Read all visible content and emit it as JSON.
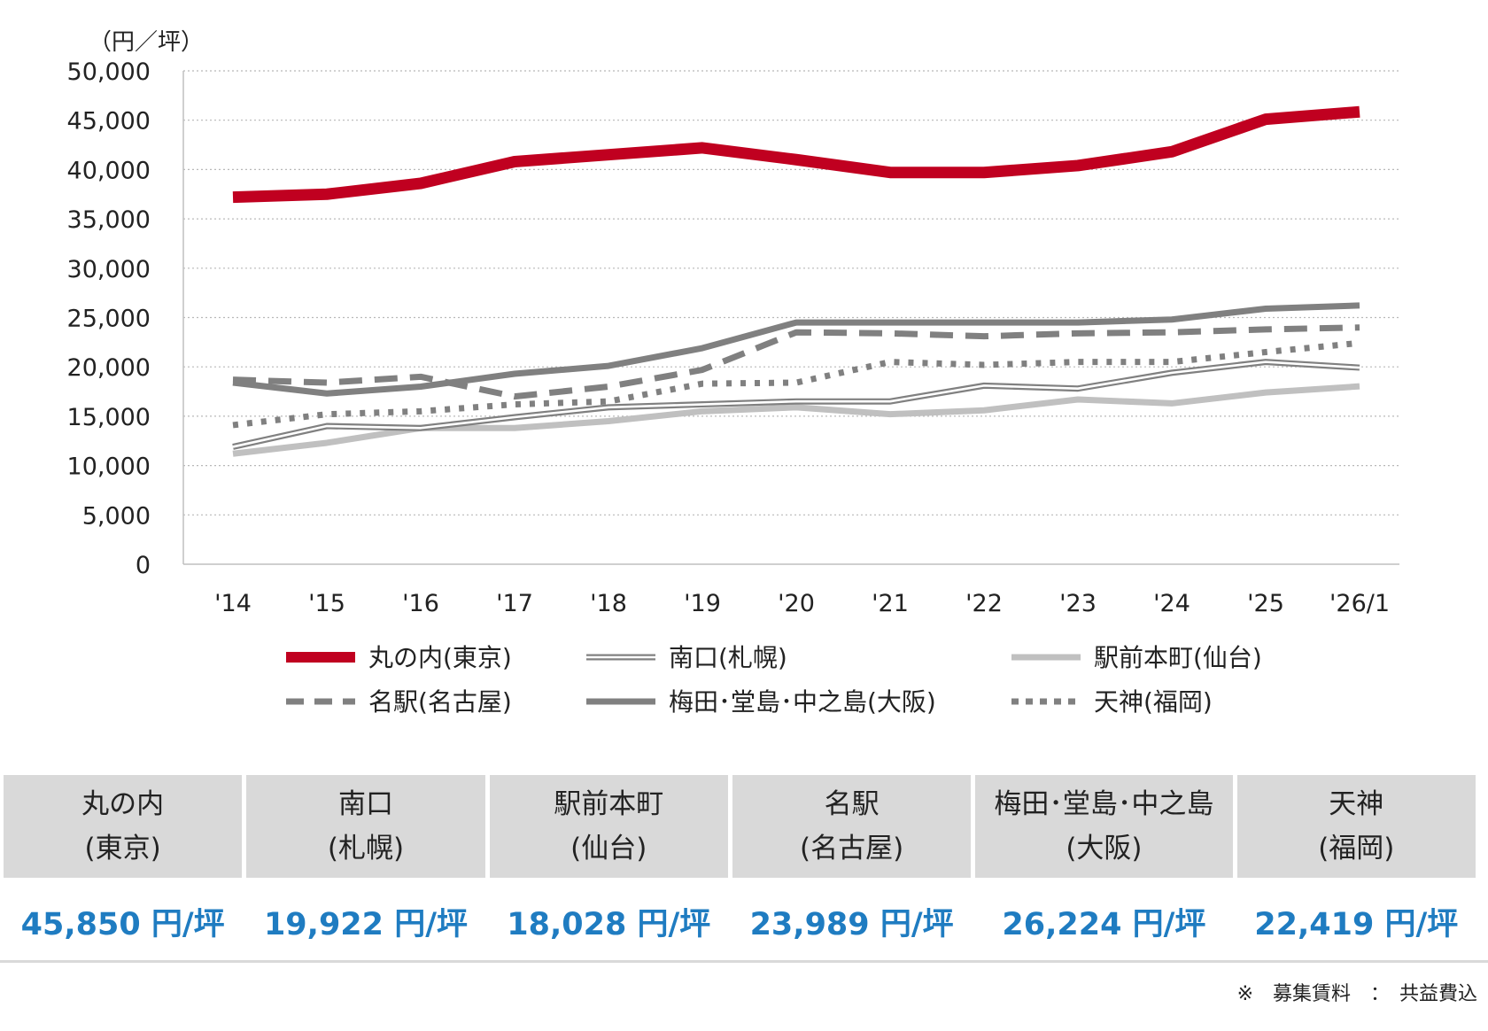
{
  "chart_data": {
    "type": "line",
    "y_unit_label": "（円／坪）",
    "ylim": [
      0,
      50000
    ],
    "yticks": [
      0,
      5000,
      10000,
      15000,
      20000,
      25000,
      30000,
      35000,
      40000,
      45000,
      50000
    ],
    "ytick_labels": [
      "0",
      "5,000",
      "10,000",
      "15,000",
      "20,000",
      "25,000",
      "30,000",
      "35,000",
      "40,000",
      "45,000",
      "50,000"
    ],
    "categories": [
      "'14",
      "'15",
      "'16",
      "'17",
      "'18",
      "'19",
      "'20",
      "'21",
      "'22",
      "'23",
      "'24",
      "'25",
      "'26/1"
    ],
    "grid": "horizontal dotted",
    "legend_position": "bottom",
    "series": [
      {
        "name": "丸の内(東京)",
        "style": "thick-solid",
        "color": "#c00020",
        "values": [
          37200,
          37500,
          38600,
          40800,
          41500,
          42200,
          41000,
          39700,
          39700,
          40400,
          41800,
          45100,
          45850
        ]
      },
      {
        "name": "南口(札幌)",
        "style": "double",
        "color": "#808080",
        "values": [
          11900,
          14000,
          13800,
          14900,
          15900,
          16200,
          16500,
          16500,
          18100,
          17800,
          19400,
          20500,
          19922
        ]
      },
      {
        "name": "駅前本町(仙台)",
        "style": "light-solid",
        "color": "#c0c0c0",
        "values": [
          11200,
          12300,
          13800,
          13800,
          14500,
          15500,
          15900,
          15200,
          15600,
          16700,
          16300,
          17400,
          18028
        ]
      },
      {
        "name": "名駅(名古屋)",
        "style": "dashed",
        "color": "#808080",
        "values": [
          18700,
          18400,
          19000,
          17000,
          18000,
          19700,
          23500,
          23400,
          23100,
          23400,
          23500,
          23800,
          23989
        ]
      },
      {
        "name": "梅田･堂島･中之島(大阪)",
        "style": "solid",
        "color": "#808080",
        "values": [
          18400,
          17300,
          18000,
          19300,
          20100,
          21900,
          24500,
          24500,
          24500,
          24500,
          24800,
          25900,
          26224
        ]
      },
      {
        "name": "天神(福岡)",
        "style": "dotted",
        "color": "#808080",
        "values": [
          14100,
          15200,
          15500,
          16200,
          16500,
          18300,
          18400,
          20500,
          20200,
          20500,
          20500,
          21500,
          22419
        ]
      }
    ]
  },
  "table": {
    "columns": [
      {
        "line1": "丸の内",
        "line2": "(東京)",
        "value": "45,850 円/坪"
      },
      {
        "line1": "南口",
        "line2": "(札幌)",
        "value": "19,922 円/坪"
      },
      {
        "line1": "駅前本町",
        "line2": "(仙台)",
        "value": "18,028 円/坪"
      },
      {
        "line1": "名駅",
        "line2": "(名古屋)",
        "value": "23,989 円/坪"
      },
      {
        "line1": "梅田･堂島･中之島",
        "line2": "(大阪)",
        "value": "26,224 円/坪"
      },
      {
        "line1": "天神",
        "line2": "(福岡)",
        "value": "22,419 円/坪"
      }
    ]
  },
  "note": "※　募集賃料　：　共益費込"
}
